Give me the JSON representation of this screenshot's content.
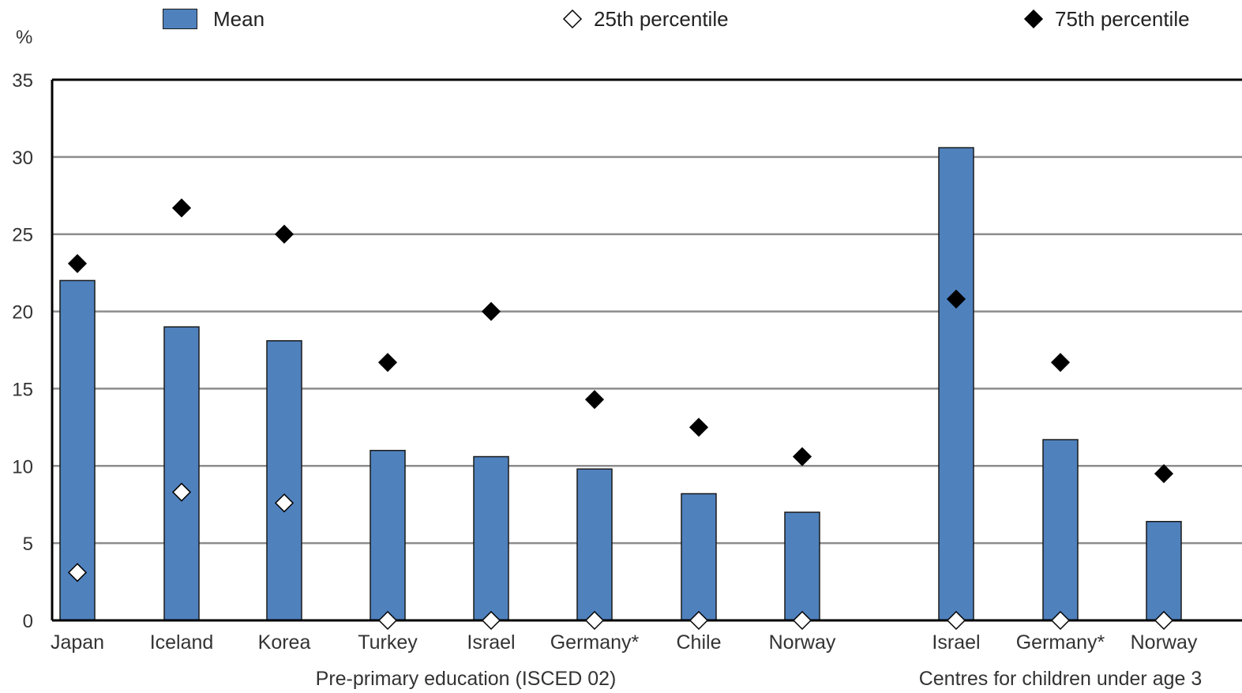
{
  "chart_data": {
    "type": "bar",
    "ylabel": "%",
    "ylim": [
      0,
      35
    ],
    "yticks": [
      0,
      5,
      10,
      15,
      20,
      25,
      30,
      35
    ],
    "grid": true,
    "legend_position": "top",
    "legend": {
      "mean": "Mean",
      "p25": "25th percentile",
      "p75": "75th percentile"
    },
    "colors": {
      "bar": "#4f81bd",
      "marker_p75": "#000000",
      "marker_p25": "#ffffff"
    },
    "groups": [
      {
        "label": "Pre-primary education (ISCED 02)",
        "categories": [
          "Japan",
          "Iceland",
          "Korea",
          "Turkey",
          "Israel",
          "Germany*",
          "Chile",
          "Norway"
        ],
        "mean": [
          22.0,
          19.0,
          18.1,
          11.0,
          10.6,
          9.8,
          8.2,
          7.0
        ],
        "p25": [
          3.1,
          8.3,
          7.6,
          0,
          0,
          0,
          0,
          0
        ],
        "p75": [
          23.1,
          26.7,
          25.0,
          16.7,
          20.0,
          14.3,
          12.5,
          10.6
        ]
      },
      {
        "label": "Centres for children under age 3",
        "categories": [
          "Israel",
          "Germany*",
          "Norway"
        ],
        "mean": [
          30.6,
          11.7,
          6.4
        ],
        "p25": [
          0,
          0,
          0
        ],
        "p75": [
          20.8,
          16.7,
          9.5
        ]
      }
    ]
  }
}
